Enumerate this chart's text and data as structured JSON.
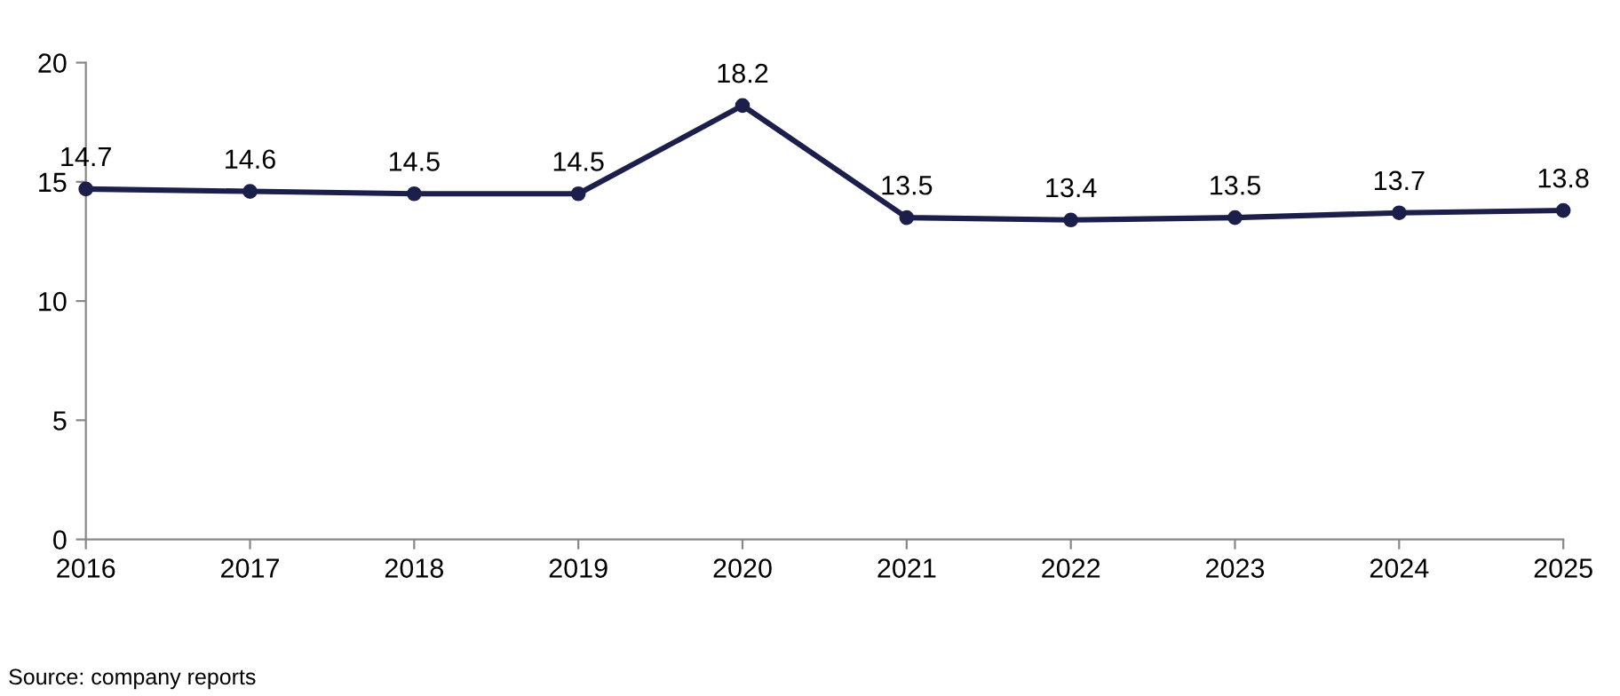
{
  "chart_data": {
    "type": "line",
    "x": [
      2016,
      2017,
      2018,
      2019,
      2020,
      2021,
      2022,
      2023,
      2024,
      2025
    ],
    "series": [
      {
        "color": "#1c1f4c",
        "values": [
          14.7,
          14.6,
          14.5,
          14.5,
          18.2,
          13.5,
          13.4,
          13.5,
          13.7,
          13.8
        ]
      }
    ],
    "xlim": [
      2016,
      2025
    ],
    "xticks": [
      2016,
      2017,
      2018,
      2019,
      2020,
      2021,
      2022,
      2023,
      2024,
      2025
    ],
    "ylim": [
      0,
      20
    ],
    "yticks": [
      0,
      5,
      10,
      15,
      20
    ],
    "data_labels": true,
    "marker": "circle",
    "line_style": "solid",
    "grid": false,
    "legend": false,
    "annotations": [
      "Source: company reports"
    ]
  }
}
